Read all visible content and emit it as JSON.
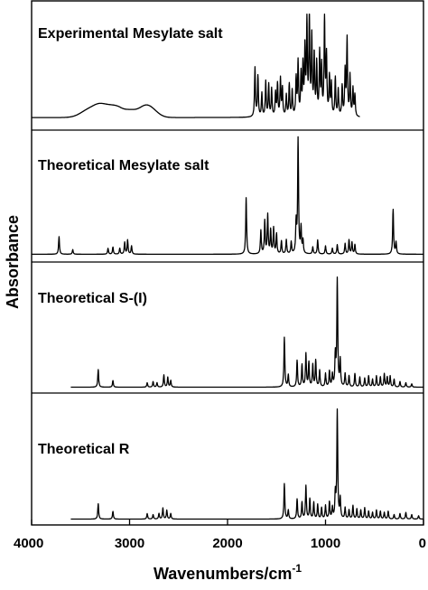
{
  "chart_data": {
    "type": "line",
    "xlabel_main": "Wavenumbers/cm",
    "xlabel_sup": "-1",
    "ylabel": "Absorbance",
    "xlim": [
      4000,
      0
    ],
    "xticks": [
      4000,
      3000,
      2000,
      1000,
      0
    ],
    "xtick_labels": [
      "4000",
      "3000",
      "2000",
      "1000",
      "0"
    ],
    "y_ticks_shown": false,
    "panels": [
      {
        "name": "Experimental Mesylate salt",
        "x_range": [
          4000,
          650
        ],
        "baseline": 0.05,
        "broad": [
          [
            3400,
            0.08,
            90
          ],
          [
            3300,
            0.07,
            60
          ],
          [
            3200,
            0.08,
            60
          ],
          [
            3120,
            0.05,
            50
          ],
          [
            3000,
            0.07,
            80
          ],
          [
            2850,
            0.06,
            60
          ],
          [
            2780,
            0.07,
            70
          ]
        ],
        "peaks": [
          [
            1720,
            0.46
          ],
          [
            1690,
            0.38
          ],
          [
            1650,
            0.22
          ],
          [
            1610,
            0.33
          ],
          [
            1580,
            0.3
          ],
          [
            1550,
            0.26
          ],
          [
            1510,
            0.22
          ],
          [
            1490,
            0.3
          ],
          [
            1460,
            0.35
          ],
          [
            1440,
            0.26
          ],
          [
            1400,
            0.2
          ],
          [
            1370,
            0.3
          ],
          [
            1340,
            0.24
          ],
          [
            1300,
            0.35
          ],
          [
            1280,
            0.5
          ],
          [
            1250,
            0.38
          ],
          [
            1230,
            0.45
          ],
          [
            1210,
            0.6
          ],
          [
            1190,
            0.86
          ],
          [
            1165,
            0.96
          ],
          [
            1140,
            0.72
          ],
          [
            1115,
            0.56
          ],
          [
            1090,
            0.48
          ],
          [
            1060,
            0.58
          ],
          [
            1040,
            0.45
          ],
          [
            1010,
            0.92
          ],
          [
            990,
            0.55
          ],
          [
            960,
            0.36
          ],
          [
            940,
            0.3
          ],
          [
            900,
            0.36
          ],
          [
            870,
            0.25
          ],
          [
            830,
            0.28
          ],
          [
            800,
            0.42
          ],
          [
            780,
            0.72
          ],
          [
            750,
            0.38
          ],
          [
            720,
            0.26
          ],
          [
            700,
            0.2
          ]
        ]
      },
      {
        "name": "Theoretical Mesylate salt",
        "x_range": [
          4000,
          0
        ],
        "baseline": 0.02,
        "peaks": [
          [
            3720,
            0.15
          ],
          [
            3580,
            0.04
          ],
          [
            3220,
            0.05
          ],
          [
            3170,
            0.06
          ],
          [
            3100,
            0.05
          ],
          [
            3050,
            0.1
          ],
          [
            3020,
            0.12
          ],
          [
            2980,
            0.07
          ],
          [
            1810,
            0.48
          ],
          [
            1660,
            0.2
          ],
          [
            1620,
            0.28
          ],
          [
            1590,
            0.33
          ],
          [
            1560,
            0.2
          ],
          [
            1530,
            0.22
          ],
          [
            1500,
            0.17
          ],
          [
            1450,
            0.11
          ],
          [
            1400,
            0.12
          ],
          [
            1350,
            0.1
          ],
          [
            1300,
            0.26
          ],
          [
            1280,
            0.98
          ],
          [
            1250,
            0.22
          ],
          [
            1230,
            0.11
          ],
          [
            1130,
            0.06
          ],
          [
            1080,
            0.12
          ],
          [
            1000,
            0.07
          ],
          [
            930,
            0.05
          ],
          [
            880,
            0.08
          ],
          [
            800,
            0.09
          ],
          [
            760,
            0.12
          ],
          [
            730,
            0.1
          ],
          [
            700,
            0.08
          ],
          [
            310,
            0.38
          ],
          [
            280,
            0.1
          ]
        ]
      },
      {
        "name": "Theoretical S-(I)",
        "x_range": [
          3600,
          0
        ],
        "baseline": 0.02,
        "peaks": [
          [
            3320,
            0.16
          ],
          [
            3170,
            0.06
          ],
          [
            2820,
            0.04
          ],
          [
            2760,
            0.05
          ],
          [
            2720,
            0.04
          ],
          [
            2650,
            0.11
          ],
          [
            2610,
            0.09
          ],
          [
            2580,
            0.06
          ],
          [
            1420,
            0.45
          ],
          [
            1380,
            0.11
          ],
          [
            1290,
            0.24
          ],
          [
            1240,
            0.2
          ],
          [
            1200,
            0.3
          ],
          [
            1170,
            0.22
          ],
          [
            1130,
            0.2
          ],
          [
            1100,
            0.24
          ],
          [
            1060,
            0.15
          ],
          [
            1000,
            0.12
          ],
          [
            960,
            0.14
          ],
          [
            930,
            0.11
          ],
          [
            900,
            0.28
          ],
          [
            880,
            0.98
          ],
          [
            850,
            0.24
          ],
          [
            800,
            0.12
          ],
          [
            760,
            0.1
          ],
          [
            700,
            0.12
          ],
          [
            650,
            0.09
          ],
          [
            600,
            0.08
          ],
          [
            560,
            0.1
          ],
          [
            520,
            0.07
          ],
          [
            480,
            0.1
          ],
          [
            440,
            0.09
          ],
          [
            400,
            0.12
          ],
          [
            370,
            0.09
          ],
          [
            340,
            0.1
          ],
          [
            300,
            0.07
          ],
          [
            240,
            0.05
          ],
          [
            180,
            0.04
          ],
          [
            120,
            0.03
          ]
        ]
      },
      {
        "name": "Theoretical R",
        "x_range": [
          3600,
          0
        ],
        "baseline": 0.02,
        "peaks": [
          [
            3320,
            0.14
          ],
          [
            3170,
            0.07
          ],
          [
            2820,
            0.05
          ],
          [
            2760,
            0.04
          ],
          [
            2700,
            0.05
          ],
          [
            2660,
            0.1
          ],
          [
            2620,
            0.08
          ],
          [
            2580,
            0.05
          ],
          [
            1420,
            0.32
          ],
          [
            1380,
            0.08
          ],
          [
            1290,
            0.18
          ],
          [
            1240,
            0.15
          ],
          [
            1200,
            0.3
          ],
          [
            1160,
            0.18
          ],
          [
            1120,
            0.15
          ],
          [
            1080,
            0.13
          ],
          [
            1040,
            0.1
          ],
          [
            1000,
            0.12
          ],
          [
            960,
            0.15
          ],
          [
            930,
            0.1
          ],
          [
            900,
            0.22
          ],
          [
            880,
            0.98
          ],
          [
            850,
            0.18
          ],
          [
            800,
            0.1
          ],
          [
            760,
            0.08
          ],
          [
            720,
            0.12
          ],
          [
            680,
            0.09
          ],
          [
            640,
            0.08
          ],
          [
            600,
            0.1
          ],
          [
            560,
            0.07
          ],
          [
            520,
            0.06
          ],
          [
            480,
            0.08
          ],
          [
            440,
            0.07
          ],
          [
            400,
            0.06
          ],
          [
            360,
            0.07
          ],
          [
            300,
            0.04
          ],
          [
            240,
            0.05
          ],
          [
            180,
            0.06
          ],
          [
            120,
            0.04
          ],
          [
            50,
            0.03
          ]
        ]
      }
    ]
  }
}
